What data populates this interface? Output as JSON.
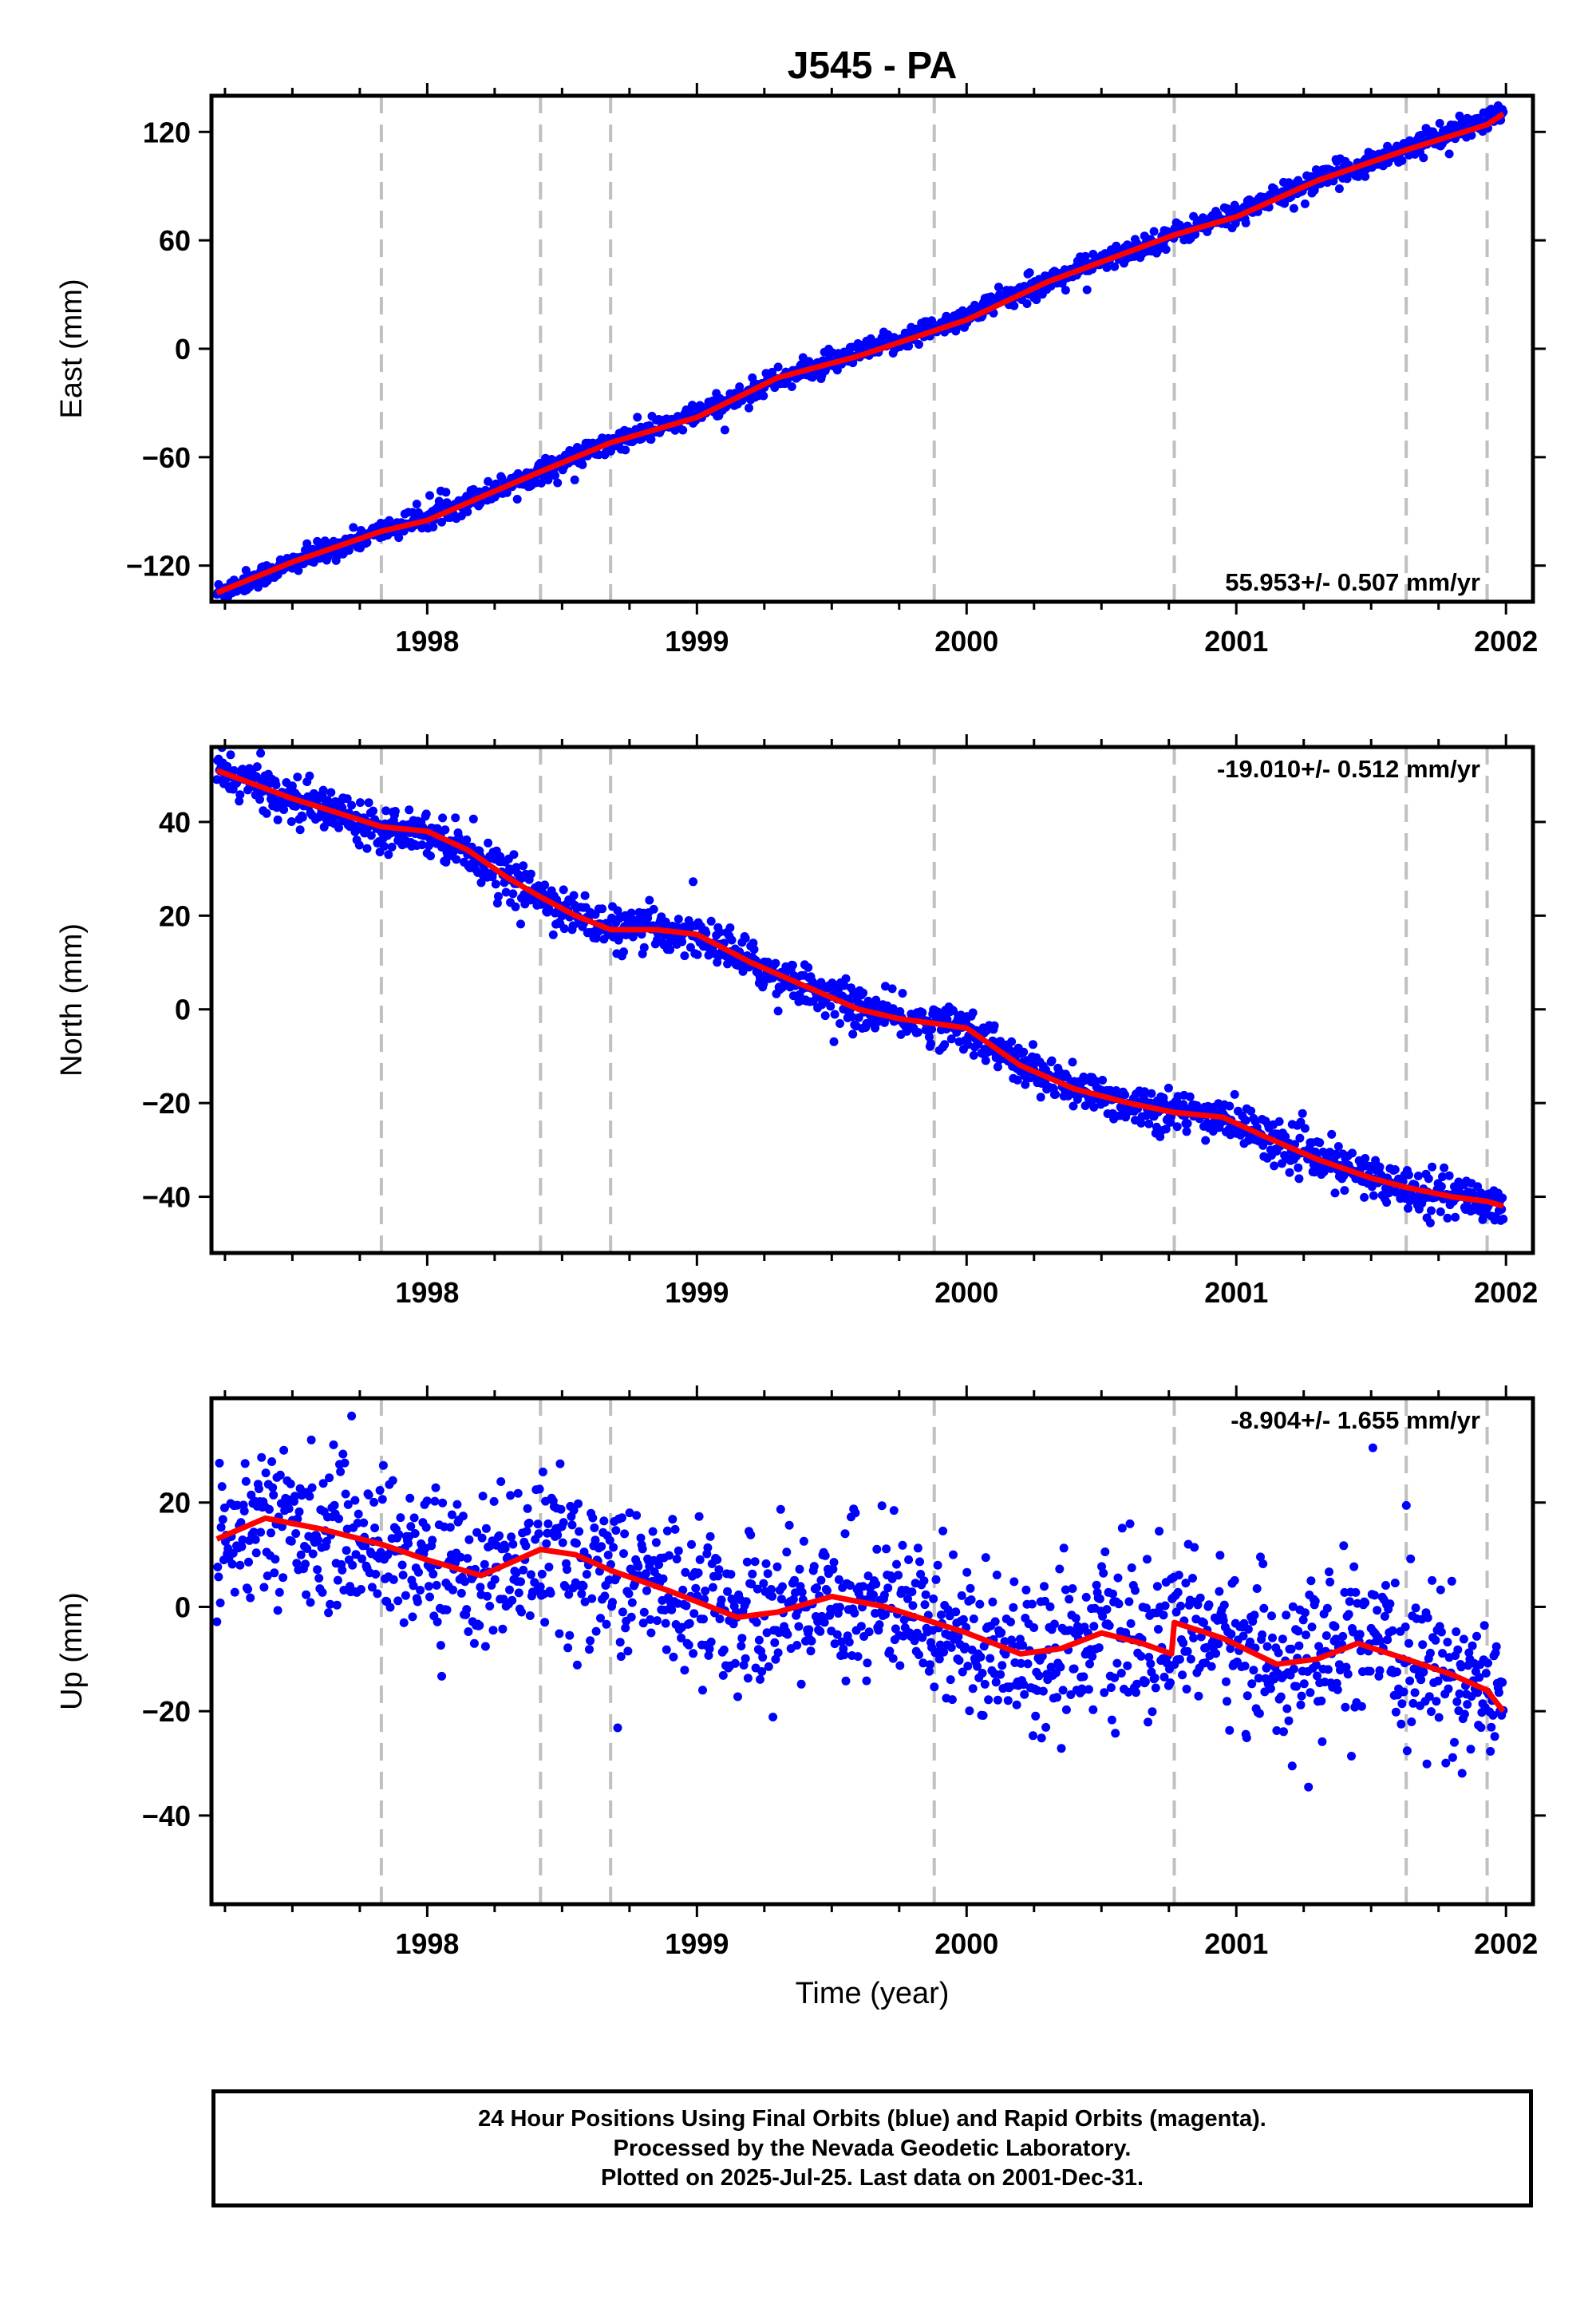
{
  "chart_data": [
    {
      "type": "scatter",
      "title": "J545 - PA",
      "ylabel": "East (mm)",
      "xlabel": "",
      "xlim": [
        1997.2,
        2002.1
      ],
      "ylim": [
        -140,
        140
      ],
      "xticks": [
        1998,
        1999,
        2000,
        2001,
        2002
      ],
      "yticks": [
        -120,
        -60,
        0,
        60,
        120
      ],
      "rate_label": "55.953+/- 0.507 mm/yr",
      "rate_position": "bottom-right",
      "event_lines": [
        1997.83,
        1998.42,
        1998.68,
        1999.88,
        2000.77,
        2001.63,
        2001.93
      ],
      "fit": {
        "name": "model",
        "color": "#ff0000",
        "x": [
          1997.22,
          1997.5,
          1997.83,
          1998.0,
          1998.2,
          1998.42,
          1998.68,
          1999.0,
          1999.3,
          1999.6,
          1999.88,
          2000.0,
          2000.3,
          2000.77,
          2001.0,
          2001.3,
          2001.63,
          2001.93,
          2001.99
        ],
        "y": [
          -135,
          -118,
          -101,
          -95,
          -82,
          -68,
          -52,
          -38,
          -16,
          -4,
          10,
          16,
          37,
          63,
          73,
          93,
          110,
          124,
          130
        ]
      },
      "points": {
        "name": "daily positions",
        "color": "#0000ff",
        "trend": {
          "x0": 1997.22,
          "y0": -135,
          "rate": 55.953
        },
        "scatter_sd": 3,
        "count": 1500
      }
    },
    {
      "type": "scatter",
      "title": "",
      "ylabel": "North (mm)",
      "xlabel": "",
      "xlim": [
        1997.2,
        2002.1
      ],
      "ylim": [
        -52,
        56
      ],
      "xticks": [
        1998,
        1999,
        2000,
        2001,
        2002
      ],
      "yticks": [
        -40,
        -20,
        0,
        20,
        40
      ],
      "rate_label": "-19.010+/- 0.512 mm/yr",
      "rate_position": "top-right",
      "event_lines": [
        1997.83,
        1998.42,
        1998.68,
        1999.88,
        2000.77,
        2001.63,
        2001.93
      ],
      "fit": {
        "name": "model",
        "color": "#ff0000",
        "x": [
          1997.22,
          1997.5,
          1997.83,
          1998.0,
          1998.15,
          1998.3,
          1998.42,
          1998.55,
          1998.68,
          1998.85,
          1999.0,
          1999.2,
          1999.4,
          1999.6,
          1999.75,
          1999.88,
          2000.0,
          2000.2,
          2000.4,
          2000.6,
          2000.77,
          2000.95,
          2001.1,
          2001.3,
          2001.5,
          2001.63,
          2001.8,
          2001.93,
          2001.99
        ],
        "y": [
          51,
          45,
          39,
          38,
          34,
          28,
          24,
          20,
          17,
          17,
          16,
          10,
          5,
          0,
          -2,
          -3,
          -4,
          -12,
          -17,
          -20,
          -22,
          -23,
          -27,
          -32,
          -36,
          -38,
          -40,
          -41,
          -42
        ]
      },
      "points": {
        "name": "daily positions",
        "color": "#0000ff",
        "trend": null,
        "scatter_sd": 2.2,
        "count": 1500
      }
    },
    {
      "type": "scatter",
      "title": "",
      "ylabel": "Up (mm)",
      "xlabel": "Time (year)",
      "xlim": [
        1997.2,
        2002.1
      ],
      "ylim": [
        -57,
        40
      ],
      "xticks": [
        1998,
        1999,
        2000,
        2001,
        2002
      ],
      "yticks": [
        -40,
        -20,
        0,
        20
      ],
      "rate_label": "-8.904+/- 1.655 mm/yr",
      "rate_position": "top-right",
      "event_lines": [
        1997.83,
        1998.42,
        1998.68,
        1999.88,
        2000.77,
        2001.63,
        2001.93
      ],
      "fit": {
        "name": "model",
        "color": "#ff0000",
        "x": [
          1997.22,
          1997.4,
          1997.6,
          1997.83,
          1998.0,
          1998.2,
          1998.42,
          1998.55,
          1998.68,
          1998.9,
          1999.15,
          1999.3,
          1999.5,
          1999.7,
          1999.88,
          2000.0,
          2000.2,
          2000.35,
          2000.5,
          2000.65,
          2000.76,
          2000.77,
          2000.95,
          2001.15,
          2001.3,
          2001.45,
          2001.63,
          2001.8,
          2001.93,
          2001.99
        ],
        "y": [
          13,
          17,
          15,
          12,
          9,
          6,
          11,
          10,
          7,
          3,
          -2,
          -1,
          2,
          0,
          -3,
          -5,
          -9,
          -8,
          -5,
          -7,
          -9,
          -3,
          -6,
          -11,
          -10,
          -7,
          -10,
          -13,
          -16,
          -20
        ]
      },
      "points": {
        "name": "daily positions",
        "color": "#0000ff",
        "trend": null,
        "scatter_sd": 7,
        "count": 1500
      }
    }
  ],
  "footer": {
    "line1": "24 Hour Positions Using Final Orbits (blue) and Rapid Orbits (magenta).",
    "line2": "Processed by the Nevada Geodetic Laboratory.",
    "line3": "Plotted on 2025-Jul-25. Last data on 2001-Dec-31."
  }
}
